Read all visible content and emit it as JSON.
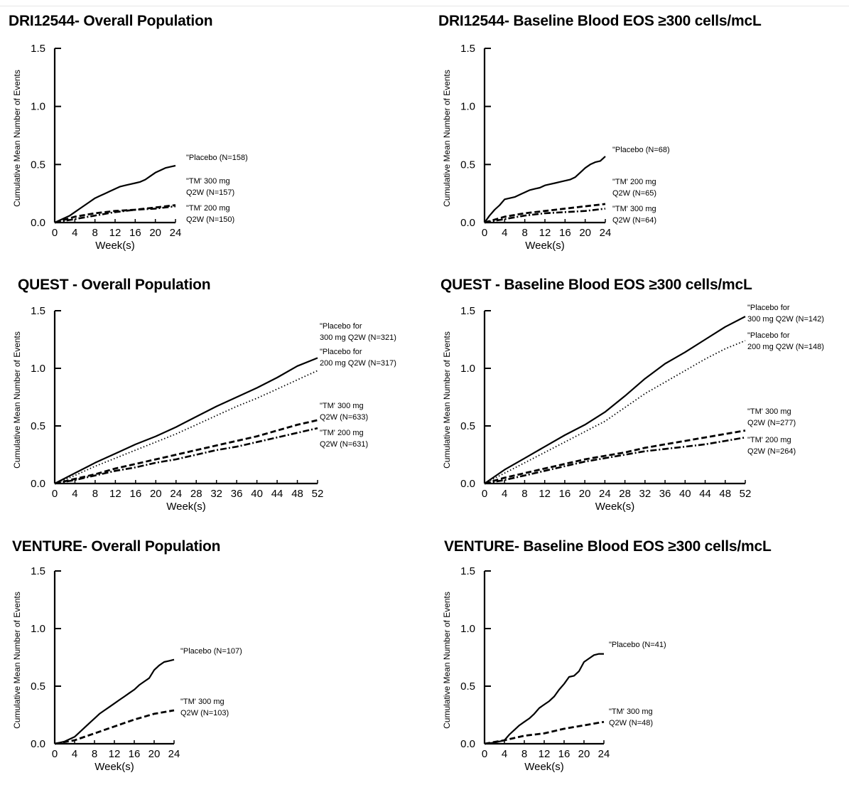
{
  "ylabel": "Cumulative Mean Number of Events",
  "xlabel": "Week(s)",
  "chart_data": [
    {
      "type": "line",
      "title": "DRI12544- Overall Population",
      "xlabel": "Week(s)",
      "ylabel": "Cumulative Mean Number of Events",
      "xlim": [
        0,
        24
      ],
      "ylim": [
        0,
        1.5
      ],
      "xticks": [
        0,
        4,
        8,
        12,
        16,
        20,
        24
      ],
      "yticks": [
        "0.0",
        "0.5",
        "1.0",
        "1.5"
      ],
      "series": [
        {
          "labels": [
            "\"Placebo (N=158)"
          ],
          "style": "solid",
          "x": [
            0,
            1,
            2,
            3,
            4,
            5,
            6,
            7,
            8,
            9,
            10,
            11,
            12,
            13,
            14,
            15,
            16,
            17,
            18,
            19,
            20,
            21,
            22,
            23,
            24
          ],
          "y": [
            0,
            0.02,
            0.04,
            0.06,
            0.09,
            0.12,
            0.15,
            0.18,
            0.21,
            0.23,
            0.25,
            0.27,
            0.29,
            0.31,
            0.32,
            0.33,
            0.34,
            0.35,
            0.37,
            0.4,
            0.43,
            0.45,
            0.47,
            0.48,
            0.49
          ]
        },
        {
          "labels": [
            "\"TM' 300 mg",
            "Q2W (N=157)"
          ],
          "style": "dashed",
          "x": [
            0,
            4,
            8,
            12,
            16,
            20,
            24
          ],
          "y": [
            0,
            0.05,
            0.08,
            0.1,
            0.11,
            0.13,
            0.15
          ]
        },
        {
          "labels": [
            "\"TM' 200 mg",
            "Q2W (N=150)"
          ],
          "style": "dashdot",
          "x": [
            0,
            4,
            8,
            12,
            16,
            20,
            24
          ],
          "y": [
            0,
            0.03,
            0.06,
            0.09,
            0.11,
            0.12,
            0.14
          ]
        }
      ]
    },
    {
      "type": "line",
      "title": "DRI12544- Baseline Blood EOS ≥300 cells/mcL",
      "xlabel": "Week(s)",
      "ylabel": "Cumulative Mean Number of Events",
      "xlim": [
        0,
        24
      ],
      "ylim": [
        0,
        1.5
      ],
      "xticks": [
        0,
        4,
        8,
        12,
        16,
        20,
        24
      ],
      "yticks": [
        "0.0",
        "0.5",
        "1.0",
        "1.5"
      ],
      "series": [
        {
          "labels": [
            "\"Placebo (N=68)"
          ],
          "style": "solid",
          "x": [
            0,
            1,
            2,
            3,
            4,
            5,
            6,
            7,
            8,
            9,
            10,
            11,
            12,
            13,
            14,
            15,
            16,
            17,
            18,
            19,
            20,
            21,
            22,
            23,
            24
          ],
          "y": [
            0,
            0.06,
            0.11,
            0.15,
            0.2,
            0.21,
            0.22,
            0.24,
            0.26,
            0.28,
            0.29,
            0.3,
            0.32,
            0.33,
            0.34,
            0.35,
            0.36,
            0.37,
            0.39,
            0.43,
            0.47,
            0.5,
            0.52,
            0.53,
            0.57
          ]
        },
        {
          "labels": [
            "\"TM' 200 mg",
            "Q2W (N=65)"
          ],
          "style": "dashed",
          "x": [
            0,
            4,
            8,
            12,
            16,
            20,
            24
          ],
          "y": [
            0,
            0.05,
            0.08,
            0.1,
            0.12,
            0.14,
            0.16
          ]
        },
        {
          "labels": [
            "\"TM' 300 mg",
            "Q2W (N=64)"
          ],
          "style": "dashdot",
          "x": [
            0,
            4,
            8,
            12,
            16,
            20,
            24
          ],
          "y": [
            0,
            0.03,
            0.06,
            0.08,
            0.09,
            0.1,
            0.12
          ]
        }
      ]
    },
    {
      "type": "line",
      "title": "QUEST - Overall Population",
      "xlabel": "Week(s)",
      "ylabel": "Cumulative Mean Number of Events",
      "xlim": [
        0,
        52
      ],
      "ylim": [
        0,
        1.5
      ],
      "xticks": [
        0,
        4,
        8,
        12,
        16,
        20,
        24,
        28,
        32,
        36,
        40,
        44,
        48,
        52
      ],
      "yticks": [
        "0.0",
        "0.5",
        "1.0",
        "1.5"
      ],
      "series": [
        {
          "labels": [
            "\"Placebo for",
            "300 mg Q2W (N=321)"
          ],
          "style": "solid",
          "x": [
            0,
            4,
            8,
            12,
            16,
            20,
            24,
            28,
            32,
            36,
            40,
            44,
            48,
            52
          ],
          "y": [
            0,
            0.09,
            0.18,
            0.26,
            0.34,
            0.41,
            0.49,
            0.58,
            0.67,
            0.75,
            0.83,
            0.92,
            1.02,
            1.09
          ]
        },
        {
          "labels": [
            "\"Placebo for",
            "200 mg Q2W (N=317)"
          ],
          "style": "dotted",
          "x": [
            0,
            4,
            8,
            12,
            16,
            20,
            24,
            28,
            32,
            36,
            40,
            44,
            48,
            52
          ],
          "y": [
            0,
            0.07,
            0.15,
            0.22,
            0.29,
            0.36,
            0.43,
            0.51,
            0.59,
            0.67,
            0.74,
            0.82,
            0.9,
            0.98
          ]
        },
        {
          "labels": [
            "\"TM' 300 mg",
            "Q2W (N=633)"
          ],
          "style": "dashed",
          "x": [
            0,
            4,
            8,
            12,
            16,
            20,
            24,
            28,
            32,
            36,
            40,
            44,
            48,
            52
          ],
          "y": [
            0,
            0.04,
            0.08,
            0.13,
            0.17,
            0.21,
            0.25,
            0.29,
            0.33,
            0.37,
            0.41,
            0.46,
            0.51,
            0.55
          ]
        },
        {
          "labels": [
            "\"TM' 200 mg",
            "Q2W (N=631)"
          ],
          "style": "dashdot",
          "x": [
            0,
            4,
            8,
            12,
            16,
            20,
            24,
            28,
            32,
            36,
            40,
            44,
            48,
            52
          ],
          "y": [
            0,
            0.03,
            0.07,
            0.11,
            0.14,
            0.18,
            0.21,
            0.25,
            0.29,
            0.32,
            0.36,
            0.4,
            0.44,
            0.48
          ]
        }
      ]
    },
    {
      "type": "line",
      "title": "QUEST - Baseline Blood EOS ≥300 cells/mcL",
      "xlabel": "Week(s)",
      "ylabel": "Cumulative Mean Number of Events",
      "xlim": [
        0,
        52
      ],
      "ylim": [
        0,
        1.5
      ],
      "xticks": [
        0,
        4,
        8,
        12,
        16,
        20,
        24,
        28,
        32,
        36,
        40,
        44,
        48,
        52
      ],
      "yticks": [
        "0.0",
        "0.5",
        "1.0",
        "1.5"
      ],
      "series": [
        {
          "labels": [
            "\"Placebo for",
            "300 mg Q2W (N=142)"
          ],
          "style": "solid",
          "x": [
            0,
            4,
            8,
            12,
            16,
            20,
            24,
            28,
            32,
            36,
            40,
            44,
            48,
            52
          ],
          "y": [
            0,
            0.12,
            0.22,
            0.32,
            0.42,
            0.51,
            0.62,
            0.76,
            0.91,
            1.04,
            1.14,
            1.25,
            1.36,
            1.45
          ]
        },
        {
          "labels": [
            "\"Placebo for",
            "200 mg Q2W (N=148)"
          ],
          "style": "dotted",
          "x": [
            0,
            4,
            8,
            12,
            16,
            20,
            24,
            28,
            32,
            36,
            40,
            44,
            48,
            52
          ],
          "y": [
            0,
            0.09,
            0.18,
            0.27,
            0.36,
            0.45,
            0.54,
            0.66,
            0.78,
            0.88,
            0.98,
            1.08,
            1.17,
            1.24
          ]
        },
        {
          "labels": [
            "\"TM' 300 mg",
            "Q2W (N=277)"
          ],
          "style": "dashed",
          "x": [
            0,
            4,
            8,
            12,
            16,
            20,
            24,
            28,
            32,
            36,
            40,
            44,
            48,
            52
          ],
          "y": [
            0,
            0.05,
            0.09,
            0.13,
            0.17,
            0.21,
            0.24,
            0.27,
            0.31,
            0.34,
            0.37,
            0.4,
            0.43,
            0.46
          ]
        },
        {
          "labels": [
            "\"TM' 200 mg",
            "Q2W (N=264)"
          ],
          "style": "dashdot",
          "x": [
            0,
            4,
            8,
            12,
            16,
            20,
            24,
            28,
            32,
            36,
            40,
            44,
            48,
            52
          ],
          "y": [
            0,
            0.03,
            0.07,
            0.11,
            0.15,
            0.19,
            0.22,
            0.25,
            0.28,
            0.3,
            0.32,
            0.34,
            0.37,
            0.4
          ]
        }
      ]
    },
    {
      "type": "line",
      "title": "VENTURE- Overall Population",
      "xlabel": "Week(s)",
      "ylabel": "Cumulative Mean Number of Events",
      "xlim": [
        0,
        24
      ],
      "ylim": [
        0,
        1.5
      ],
      "xticks": [
        0,
        4,
        8,
        12,
        16,
        20,
        24
      ],
      "yticks": [
        "0.0",
        "0.5",
        "1.0",
        "1.5"
      ],
      "series": [
        {
          "labels": [
            "\"Placebo (N=107)"
          ],
          "style": "solid",
          "x": [
            0,
            1,
            2,
            3,
            4,
            5,
            6,
            7,
            8,
            9,
            10,
            11,
            12,
            13,
            14,
            15,
            16,
            17,
            18,
            19,
            20,
            21,
            22,
            23,
            24
          ],
          "y": [
            0,
            0.01,
            0.02,
            0.04,
            0.06,
            0.1,
            0.14,
            0.18,
            0.22,
            0.26,
            0.29,
            0.32,
            0.35,
            0.38,
            0.41,
            0.44,
            0.47,
            0.51,
            0.54,
            0.57,
            0.64,
            0.68,
            0.71,
            0.72,
            0.73
          ]
        },
        {
          "labels": [
            "\"TM' 300 mg",
            "Q2W (N=103)"
          ],
          "style": "dashed",
          "x": [
            0,
            4,
            8,
            12,
            16,
            20,
            24
          ],
          "y": [
            0,
            0.03,
            0.09,
            0.15,
            0.21,
            0.26,
            0.29
          ]
        }
      ]
    },
    {
      "type": "line",
      "title": "VENTURE- Baseline Blood EOS ≥300 cells/mcL",
      "xlabel": "Week(s)",
      "ylabel": "Cumulative Mean Number of Events",
      "xlim": [
        0,
        24
      ],
      "ylim": [
        0,
        1.5
      ],
      "xticks": [
        0,
        4,
        8,
        12,
        16,
        20,
        24
      ],
      "yticks": [
        "0.0",
        "0.5",
        "1.0",
        "1.5"
      ],
      "series": [
        {
          "labels": [
            "\"Placebo (N=41)"
          ],
          "style": "solid",
          "x": [
            0,
            2,
            4,
            5,
            6,
            7,
            8,
            9,
            10,
            11,
            12,
            13,
            14,
            15,
            16,
            17,
            18,
            19,
            20,
            21,
            22,
            23,
            24
          ],
          "y": [
            0,
            0.01,
            0.03,
            0.08,
            0.12,
            0.16,
            0.19,
            0.22,
            0.26,
            0.31,
            0.34,
            0.37,
            0.41,
            0.47,
            0.52,
            0.58,
            0.59,
            0.63,
            0.71,
            0.74,
            0.77,
            0.78,
            0.78
          ]
        },
        {
          "labels": [
            "\"TM' 300 mg",
            "Q2W (N=48)"
          ],
          "style": "dashed",
          "x": [
            0,
            4,
            8,
            12,
            16,
            20,
            24
          ],
          "y": [
            0,
            0.03,
            0.07,
            0.09,
            0.13,
            0.16,
            0.19
          ]
        }
      ]
    }
  ]
}
